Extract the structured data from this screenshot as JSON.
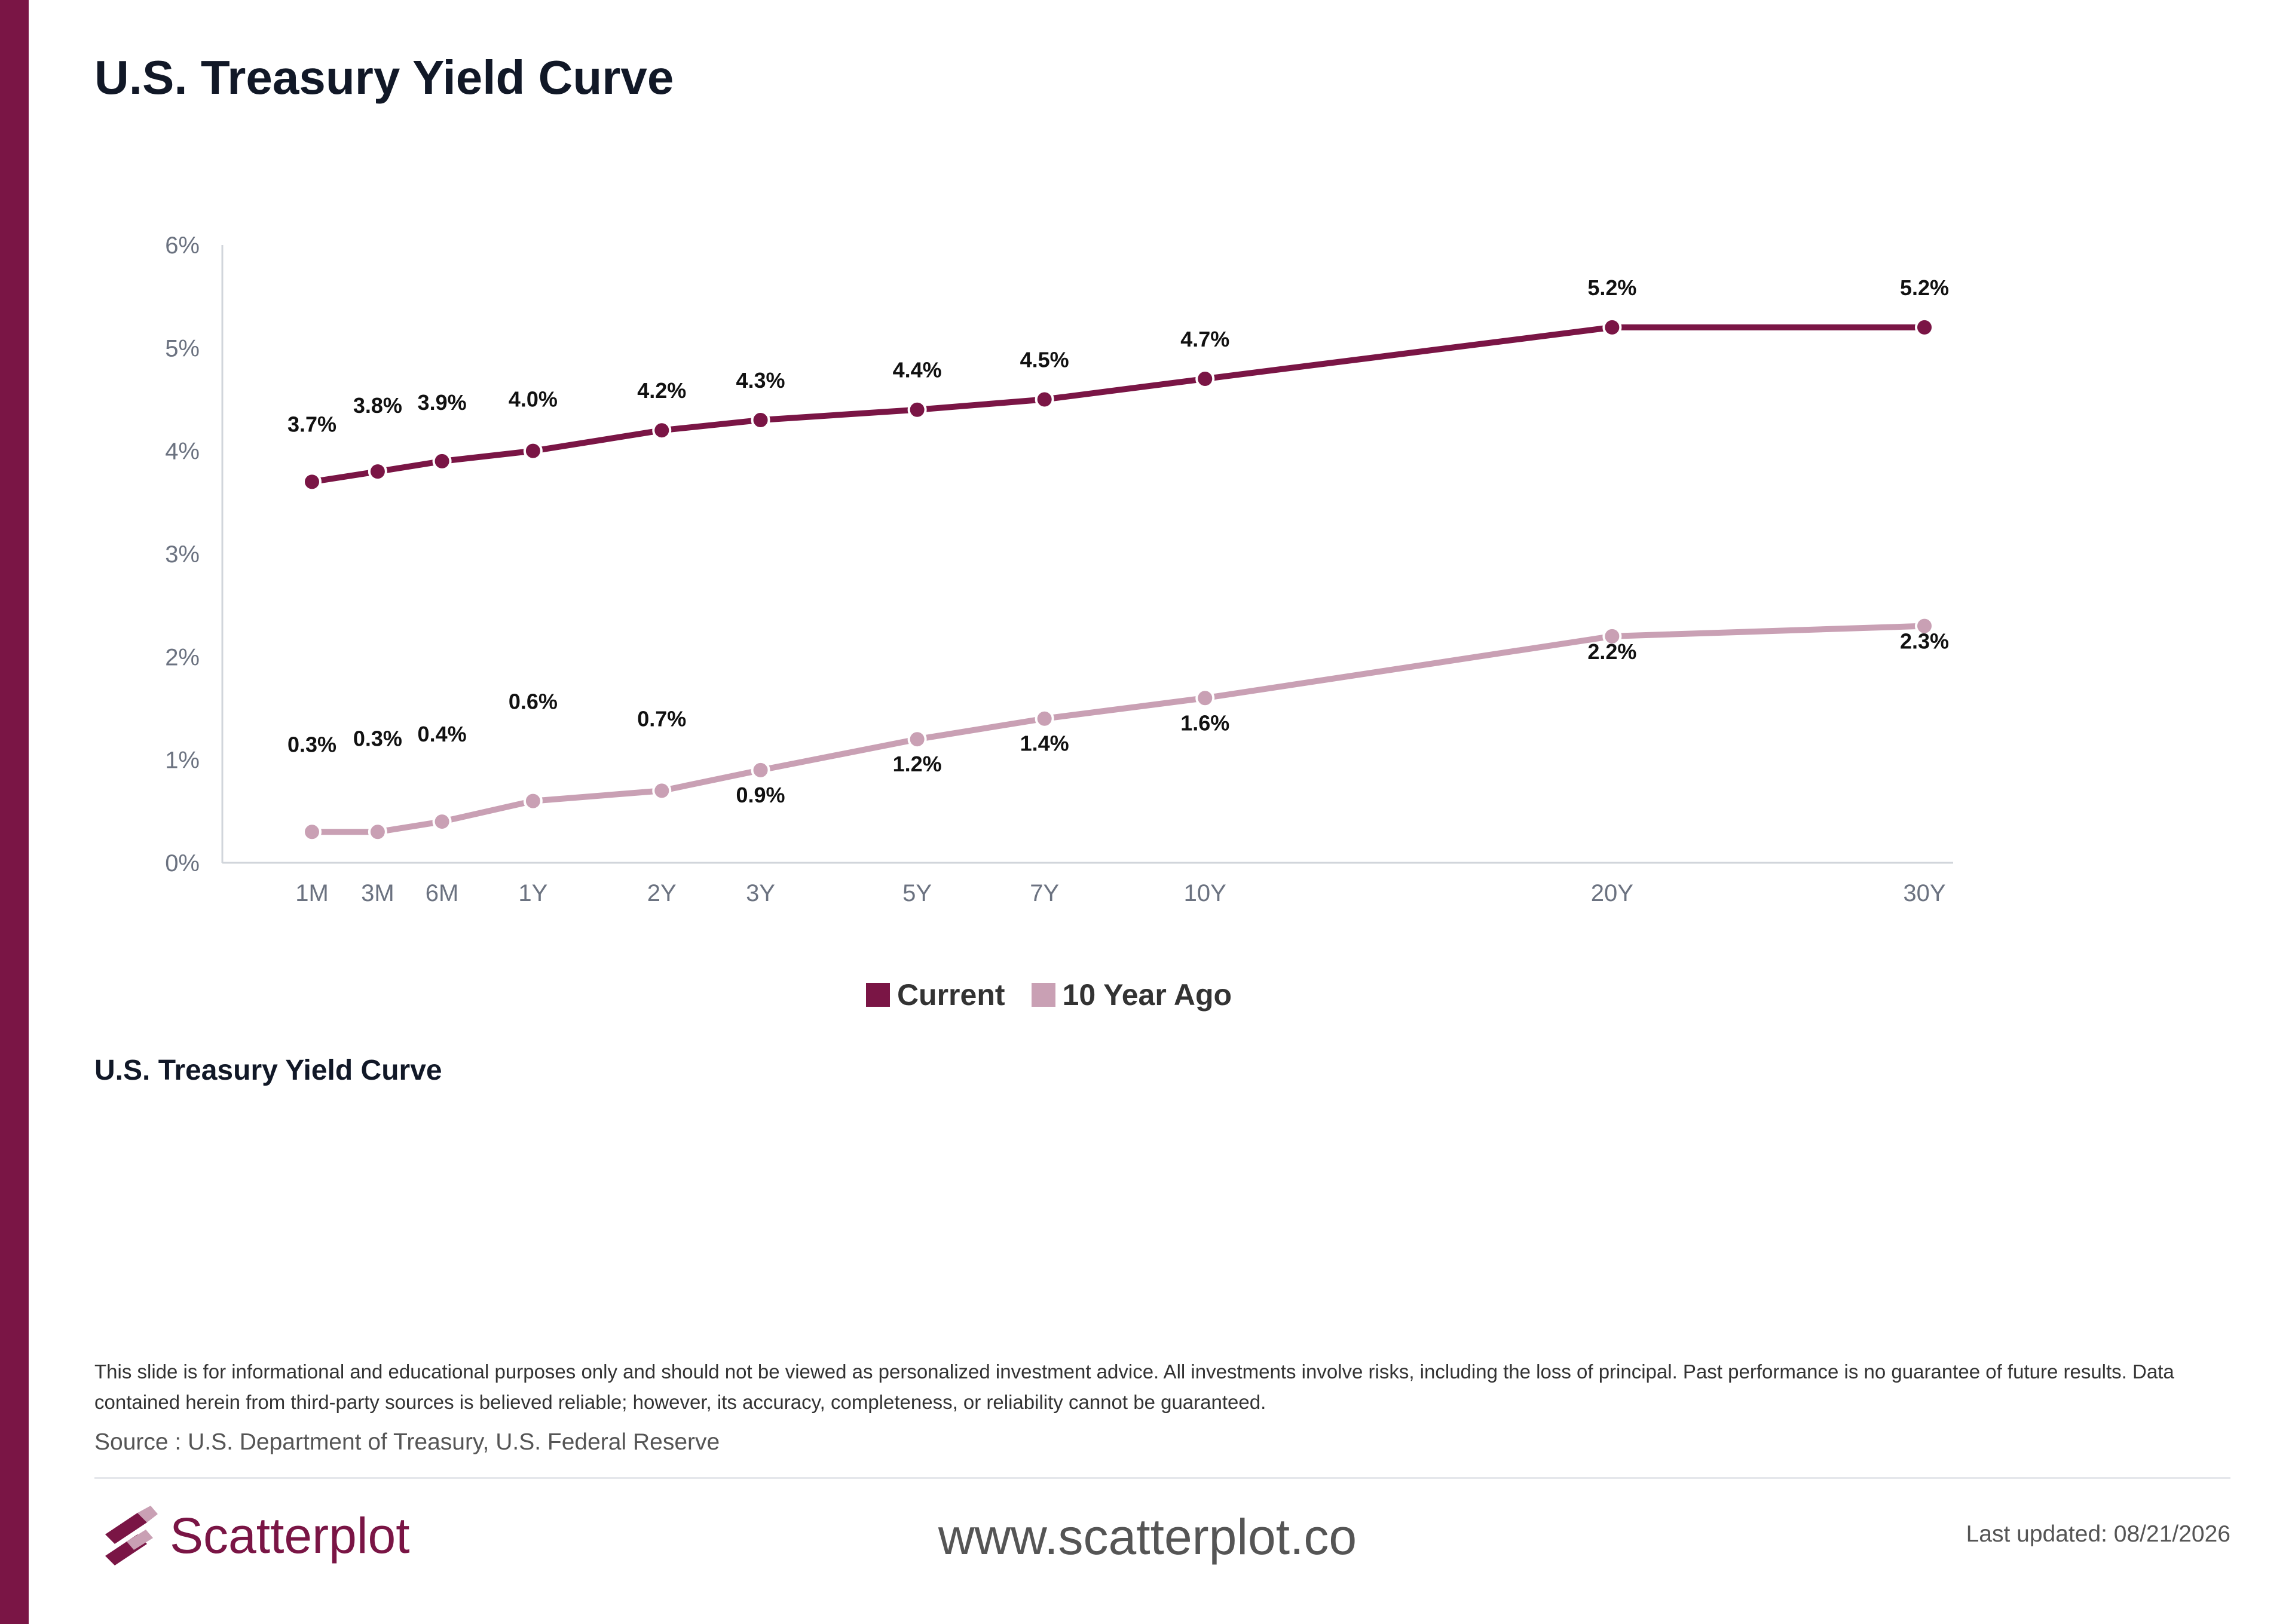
{
  "title": "U.S. Treasury Yield Curve",
  "subtitle_below_chart": "U.S. Treasury Yield Curve",
  "disclaimer": "This slide is for informational and educational purposes only and should not be viewed as personalized investment advice. All investments involve risks, including the loss of principal. Past performance is no guarantee of future results. Data contained herein from third-party sources is believed reliable; however, its accuracy, completeness, or reliability cannot be guaranteed.",
  "source": "Source : U.S. Department of Treasury, U.S. Federal Reserve",
  "brand": {
    "logo_text": "Scatterplot",
    "logo_icon": "scatterplot-logo-icon",
    "website": "www.scatterplot.co",
    "last_updated": "Last updated: 08/21/2026",
    "accent_color": "#7a1545"
  },
  "chart_data": {
    "type": "line",
    "title": "",
    "xlabel": "",
    "ylabel": "",
    "x_scale": "maturity in months, proportional to sqrt",
    "categories": [
      "1M",
      "3M",
      "6M",
      "1Y",
      "2Y",
      "3Y",
      "5Y",
      "7Y",
      "10Y",
      "20Y",
      "30Y"
    ],
    "maturity_months": [
      1,
      3,
      6,
      12,
      24,
      36,
      60,
      84,
      120,
      240,
      360
    ],
    "y_ticks": [
      "0%",
      "1%",
      "2%",
      "3%",
      "4%",
      "5%",
      "6%"
    ],
    "ylim": [
      0,
      6
    ],
    "grid": false,
    "legend_position": "bottom-center",
    "series": [
      {
        "name": "Current",
        "color": "#7a1545",
        "values": [
          3.7,
          3.8,
          3.9,
          4.0,
          4.2,
          4.3,
          4.4,
          4.5,
          4.7,
          5.2,
          5.2
        ],
        "labels": [
          "3.7%",
          "3.8%",
          "3.9%",
          "4.0%",
          "4.2%",
          "4.3%",
          "4.4%",
          "4.5%",
          "4.7%",
          "5.2%",
          "5.2%"
        ]
      },
      {
        "name": "10 Year Ago",
        "color": "#c9a0b4",
        "values": [
          0.3,
          0.3,
          0.4,
          0.6,
          0.7,
          0.9,
          1.2,
          1.4,
          1.6,
          2.2,
          2.3
        ],
        "labels": [
          "0.3%",
          "0.3%",
          "0.4%",
          "0.6%",
          "0.7%",
          "0.9%",
          "1.2%",
          "1.4%",
          "1.6%",
          "2.2%",
          "2.3%"
        ]
      }
    ]
  }
}
